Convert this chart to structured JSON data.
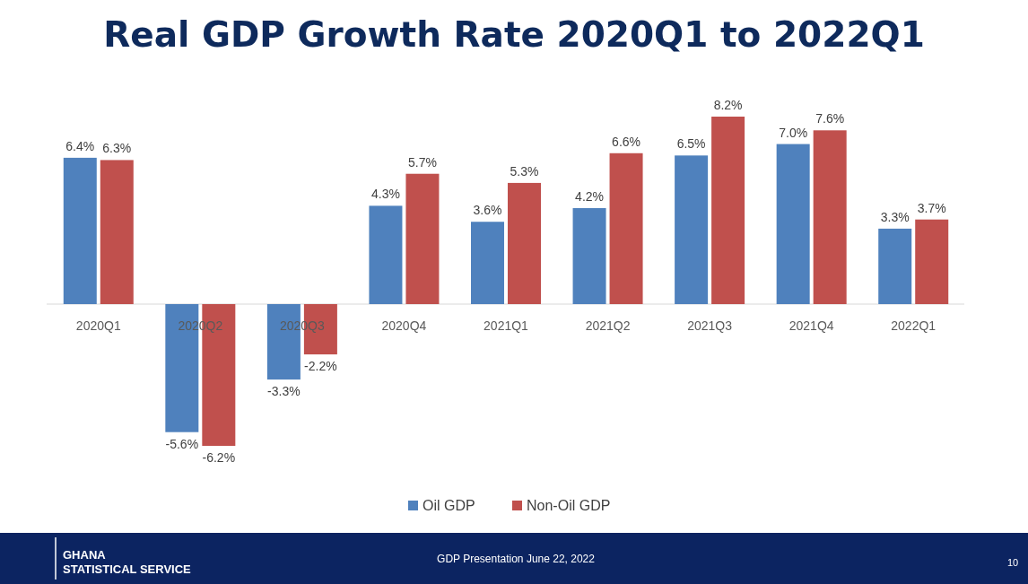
{
  "chart_data": {
    "type": "bar",
    "title": "Real GDP Growth Rate 2020Q1 to 2022Q1",
    "categories": [
      "2020Q1",
      "2020Q2",
      "2020Q3",
      "2020Q4",
      "2021Q1",
      "2021Q2",
      "2021Q3",
      "2021Q4",
      "2022Q1"
    ],
    "series": [
      {
        "name": "Oil GDP",
        "color": "#4f81bd",
        "values": [
          6.4,
          -5.6,
          -3.3,
          4.3,
          3.6,
          4.2,
          6.5,
          7.0,
          3.3
        ],
        "value_labels": [
          "6.4%",
          "-5.6%",
          "-3.3%",
          "4.3%",
          "3.6%",
          "4.2%",
          "6.5%",
          "7.0%",
          "3.3%"
        ]
      },
      {
        "name": "Non-Oil GDP",
        "color": "#c0504d",
        "values": [
          6.3,
          -6.2,
          -2.2,
          5.7,
          5.3,
          6.6,
          8.2,
          7.6,
          3.7
        ],
        "value_labels": [
          "6.3%",
          "-6.2%",
          "-2.2%",
          "5.7%",
          "5.3%",
          "6.6%",
          "8.2%",
          "7.6%",
          "3.7%"
        ]
      }
    ],
    "legend": "bottom",
    "annotations": [
      "GHANA\nSTATISTICAL SERVICE",
      "GDP Presentation June 22, 2022",
      "10"
    ]
  }
}
